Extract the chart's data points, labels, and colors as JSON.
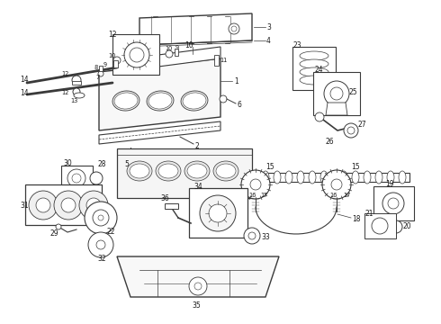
{
  "bg_color": "#ffffff",
  "line_color": "#3a3a3a",
  "text_color": "#1a1a1a",
  "fig_width": 4.9,
  "fig_height": 3.6,
  "dpi": 100,
  "label_fs": 5.8,
  "lw_main": 0.7,
  "lw_thin": 0.4,
  "lw_thick": 1.2
}
